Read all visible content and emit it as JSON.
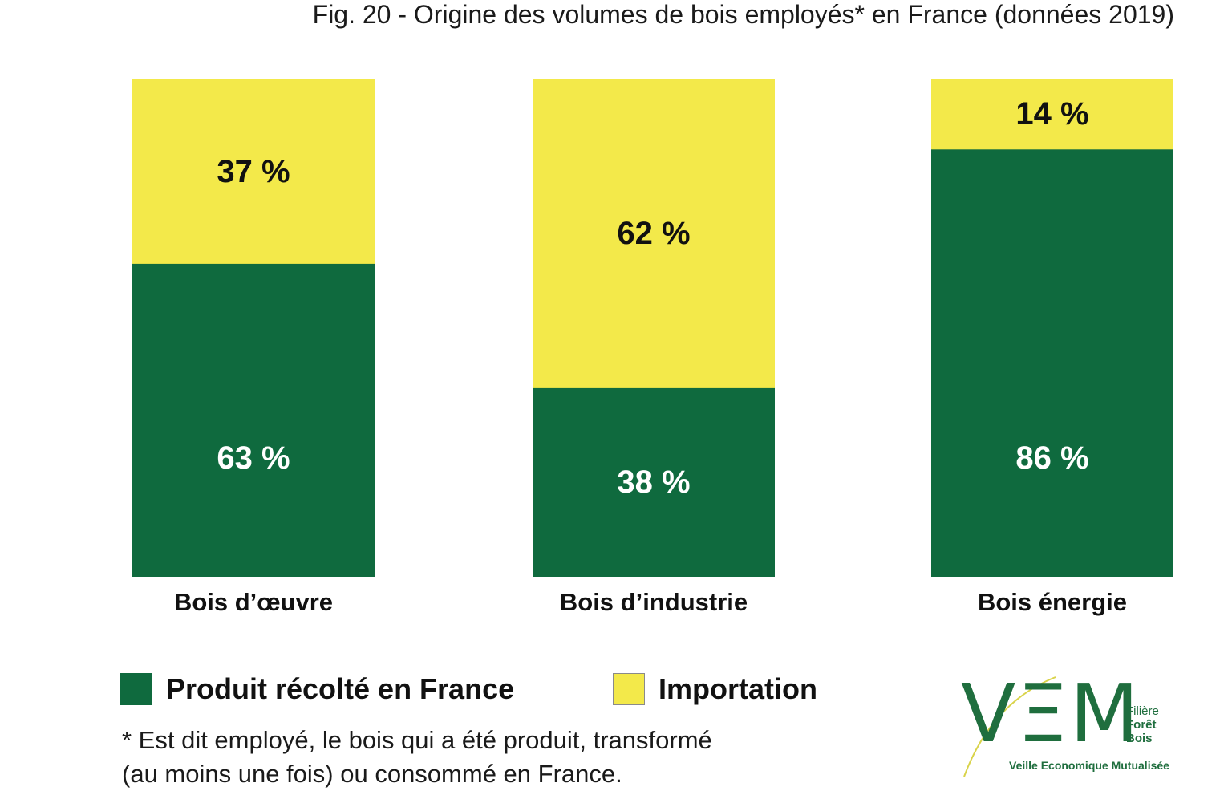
{
  "title": "Fig. 20 - Origine des volumes de bois employés* en France (données 2019)",
  "chart_data": {
    "type": "bar",
    "stacked": true,
    "categories": [
      "Bois d’œuvre",
      "Bois d’industrie",
      "Bois énergie"
    ],
    "series": [
      {
        "name": "Produit récolté en France",
        "values": [
          63,
          38,
          86
        ],
        "labels": [
          "63 %",
          "38 %",
          "86 %"
        ],
        "color": "#0f6a3e",
        "label_color": "#ffffff"
      },
      {
        "name": "Importation",
        "values": [
          37,
          62,
          14
        ],
        "labels": [
          "37 %",
          "62 %",
          "14 %"
        ],
        "color": "#f3e94a",
        "label_color": "#111111"
      }
    ],
    "ylim": [
      0,
      100
    ],
    "grid": false,
    "legend": "bottom-left"
  },
  "footnote": {
    "line1": "* Est dit employé, le bois qui a été produit, transformé",
    "line2": "(au moins une fois) ou consommé en France."
  },
  "logo": {
    "letters": "VΞM",
    "line1": "Filière",
    "line2": "Forêt",
    "line3": "Bois",
    "tagline": "Veille Economique Mutualisée",
    "color": "#1f6e3e",
    "accent": "#d9d34a"
  }
}
